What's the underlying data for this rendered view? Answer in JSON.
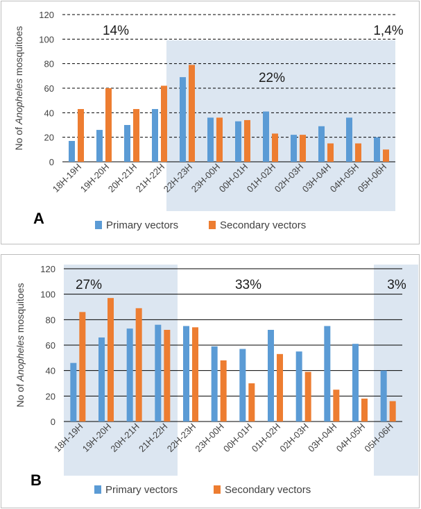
{
  "chart_data": [
    {
      "type": "bar",
      "panel": "A",
      "categories": [
        "18H-19H",
        "19H-20H",
        "20H-21H",
        "21H-22H",
        "22H-23H",
        "23H-00H",
        "00H-01H",
        "01H-02H",
        "02H-03H",
        "03H-04H",
        "04H-05H",
        "05H-06H"
      ],
      "series": [
        {
          "name": "Primary vectors",
          "values": [
            17,
            26,
            30,
            43,
            69,
            36,
            33,
            41,
            22,
            29,
            36,
            20
          ]
        },
        {
          "name": "Secondary vectors",
          "values": [
            43,
            60,
            43,
            62,
            79,
            36,
            34,
            23,
            22,
            15,
            15,
            10
          ]
        }
      ],
      "ylabel": "No of Anopheles mosquitoes",
      "ylim": [
        0,
        120
      ],
      "yticks": [
        0,
        20,
        40,
        60,
        80,
        100,
        120
      ],
      "grid": "dashed",
      "percent_labels": [
        "14%",
        "22%",
        "1,4%"
      ],
      "highlight_categories": [
        "22H-23H",
        "05H-06H"
      ],
      "legend_position": "bottom",
      "letter": "A"
    },
    {
      "type": "bar",
      "panel": "B",
      "categories": [
        "18H-19H",
        "19H-20H",
        "20H-21H",
        "21H-22H",
        "22H-23H",
        "23H-00H",
        "00H-01H",
        "01H-02H",
        "02H-03H",
        "03H-04H",
        "04H-05H",
        "05H-06H"
      ],
      "series": [
        {
          "name": "Primary vectors",
          "values": [
            46,
            66,
            73,
            76,
            75,
            59,
            57,
            72,
            55,
            75,
            61,
            40
          ]
        },
        {
          "name": "Secondary vectors",
          "values": [
            86,
            97,
            89,
            72,
            74,
            48,
            30,
            53,
            39,
            25,
            18,
            16
          ]
        }
      ],
      "ylabel": "No of Anopheles mosquitoes",
      "ylim": [
        0,
        120
      ],
      "yticks": [
        0,
        20,
        40,
        60,
        80,
        100,
        120
      ],
      "grid": "solid",
      "percent_labels": [
        "27%",
        "33%",
        "3%"
      ],
      "highlight_categories": [
        [
          "18H-19H",
          "21H-22H"
        ],
        [
          "05H-06H",
          "05H-06H"
        ]
      ],
      "legend_position": "bottom",
      "letter": "B"
    }
  ],
  "ylabel_prefix": "No of ",
  "ylabel_italic": "Anopheles",
  "ylabel_suffix": " mosquitoes",
  "legend": [
    "Primary vectors",
    "Secondary vectors"
  ],
  "colors": {
    "primary": "#5b9bd5",
    "secondary": "#ed7d31",
    "highlight": "#dce6f1",
    "grid": "#000000"
  }
}
